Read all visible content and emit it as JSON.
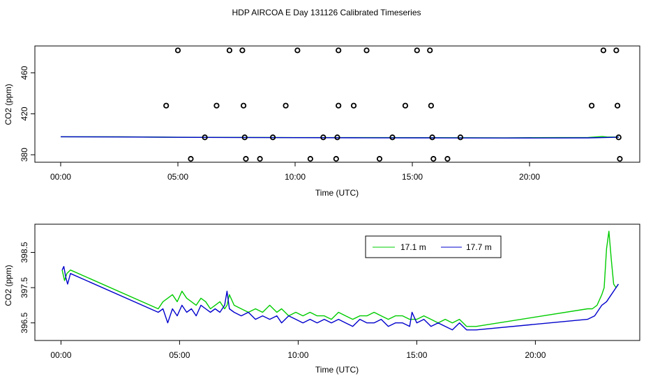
{
  "title": "HDP AIRCOA E  Day 131126  Calibrated Timeseries",
  "colors": {
    "series_17_1": "#00cc00",
    "series_17_7": "#0000cc",
    "points": "#000000"
  },
  "chart_data": [
    {
      "type": "scatter",
      "xlabel": "Time (UTC)",
      "ylabel": "CO2 (ppm)",
      "xlim": [
        -1.1,
        24.7
      ],
      "ylim": [
        372.7,
        486.3
      ],
      "xticks": [
        {
          "v": 0,
          "label": "00:00"
        },
        {
          "v": 5,
          "label": "05:00"
        },
        {
          "v": 10,
          "label": "10:00"
        },
        {
          "v": 15,
          "label": "15:00"
        },
        {
          "v": 20,
          "label": "20:00"
        }
      ],
      "yticks": [
        {
          "v": 380,
          "label": "380"
        },
        {
          "v": 420,
          "label": "420"
        },
        {
          "v": 460,
          "label": "460"
        }
      ],
      "grid": false,
      "points": [
        {
          "x": 5.0,
          "y": 482
        },
        {
          "x": 7.2,
          "y": 482
        },
        {
          "x": 7.75,
          "y": 482
        },
        {
          "x": 10.1,
          "y": 482
        },
        {
          "x": 11.85,
          "y": 482
        },
        {
          "x": 13.05,
          "y": 482
        },
        {
          "x": 15.2,
          "y": 482
        },
        {
          "x": 15.75,
          "y": 482
        },
        {
          "x": 23.15,
          "y": 482
        },
        {
          "x": 23.7,
          "y": 482
        },
        {
          "x": 4.5,
          "y": 428
        },
        {
          "x": 6.65,
          "y": 428
        },
        {
          "x": 7.8,
          "y": 428
        },
        {
          "x": 9.6,
          "y": 428
        },
        {
          "x": 11.85,
          "y": 428
        },
        {
          "x": 12.5,
          "y": 428
        },
        {
          "x": 14.7,
          "y": 428
        },
        {
          "x": 15.8,
          "y": 428
        },
        {
          "x": 22.65,
          "y": 428
        },
        {
          "x": 23.75,
          "y": 428
        },
        {
          "x": 6.15,
          "y": 397
        },
        {
          "x": 7.85,
          "y": 397
        },
        {
          "x": 9.05,
          "y": 397
        },
        {
          "x": 11.2,
          "y": 397
        },
        {
          "x": 11.8,
          "y": 397
        },
        {
          "x": 14.15,
          "y": 397
        },
        {
          "x": 15.85,
          "y": 397
        },
        {
          "x": 17.05,
          "y": 397
        },
        {
          "x": 23.8,
          "y": 397
        },
        {
          "x": 5.55,
          "y": 376
        },
        {
          "x": 7.9,
          "y": 376
        },
        {
          "x": 8.5,
          "y": 376
        },
        {
          "x": 10.65,
          "y": 376
        },
        {
          "x": 11.75,
          "y": 376
        },
        {
          "x": 13.6,
          "y": 376
        },
        {
          "x": 15.9,
          "y": 376
        },
        {
          "x": 16.5,
          "y": 376
        },
        {
          "x": 23.85,
          "y": 376
        }
      ],
      "series": [
        {
          "color": "#00cc00",
          "x": [
            0,
            2.5,
            4.5,
            7,
            10,
            13,
            16,
            19,
            22.5,
            23.1,
            23.3,
            23.8
          ],
          "y": [
            397.6,
            397.5,
            397.2,
            397.0,
            396.8,
            396.8,
            396.7,
            396.6,
            396.9,
            397.8,
            397.4,
            397.2
          ]
        },
        {
          "color": "#0000cc",
          "x": [
            0,
            2.5,
            4.5,
            7,
            10,
            13,
            16,
            19,
            22.5,
            23.3,
            23.8
          ],
          "y": [
            397.6,
            397.4,
            397.1,
            396.9,
            396.7,
            396.6,
            396.5,
            396.4,
            396.5,
            396.9,
            397.1
          ]
        }
      ]
    },
    {
      "type": "line",
      "xlabel": "Time (UTC)",
      "ylabel": "CO2 (ppm)",
      "xlim": [
        -1.1,
        24.4
      ],
      "ylim": [
        396.0,
        399.3
      ],
      "xticks": [
        {
          "v": 0,
          "label": "00:00"
        },
        {
          "v": 5,
          "label": "05:00"
        },
        {
          "v": 10,
          "label": "10:00"
        },
        {
          "v": 15,
          "label": "15:00"
        },
        {
          "v": 20,
          "label": "20:00"
        }
      ],
      "yticks": [
        {
          "v": 396.5,
          "label": "396.5"
        },
        {
          "v": 397.5,
          "label": "397.5"
        },
        {
          "v": 398.5,
          "label": "398.5"
        }
      ],
      "grid": false,
      "legend": "top-right",
      "series": [
        {
          "name": "17.1 m",
          "color": "#00cc00",
          "x": [
            0.05,
            0.15,
            0.25,
            0.4,
            4.1,
            4.3,
            4.5,
            4.7,
            4.9,
            5.1,
            5.3,
            5.5,
            5.7,
            5.9,
            6.1,
            6.3,
            6.5,
            6.7,
            6.9,
            7.0,
            7.1,
            7.3,
            7.6,
            7.9,
            8.2,
            8.5,
            8.8,
            9.1,
            9.3,
            9.6,
            9.9,
            10.2,
            10.5,
            10.8,
            11.1,
            11.4,
            11.7,
            12.0,
            12.3,
            12.6,
            12.9,
            13.2,
            13.5,
            13.8,
            14.1,
            14.4,
            14.7,
            15.0,
            15.3,
            15.6,
            15.9,
            16.2,
            16.5,
            16.8,
            17.1,
            17.5,
            22.2,
            22.4,
            22.6,
            22.8,
            22.9,
            23.0,
            23.1,
            23.2,
            23.3,
            23.4,
            23.5
          ],
          "y": [
            398.0,
            397.7,
            397.9,
            398.0,
            396.9,
            397.1,
            397.2,
            397.3,
            397.1,
            397.4,
            397.2,
            397.1,
            397.0,
            397.2,
            397.1,
            396.9,
            397.0,
            397.1,
            396.9,
            397.0,
            397.3,
            397.0,
            396.9,
            396.8,
            396.9,
            396.8,
            397.0,
            396.8,
            396.9,
            396.7,
            396.8,
            396.7,
            396.8,
            396.7,
            396.7,
            396.6,
            396.8,
            396.7,
            396.6,
            396.7,
            396.7,
            396.8,
            396.7,
            396.6,
            396.7,
            396.7,
            396.6,
            396.6,
            396.7,
            396.6,
            396.5,
            396.6,
            396.5,
            396.6,
            396.4,
            396.4,
            396.9,
            396.9,
            397.0,
            397.3,
            397.5,
            398.6,
            399.1,
            398.3,
            397.6,
            397.5,
            397.6
          ]
        },
        {
          "name": "17.7 m",
          "color": "#0000cc",
          "x": [
            0.05,
            0.12,
            0.2,
            0.28,
            0.4,
            4.1,
            4.3,
            4.5,
            4.7,
            4.9,
            5.1,
            5.3,
            5.5,
            5.7,
            5.9,
            6.1,
            6.3,
            6.5,
            6.7,
            6.9,
            7.0,
            7.1,
            7.3,
            7.6,
            7.9,
            8.2,
            8.5,
            8.8,
            9.1,
            9.3,
            9.6,
            9.9,
            10.2,
            10.5,
            10.8,
            11.1,
            11.4,
            11.7,
            12.0,
            12.3,
            12.6,
            12.9,
            13.2,
            13.5,
            13.8,
            14.1,
            14.4,
            14.7,
            14.8,
            15.0,
            15.3,
            15.6,
            15.9,
            16.2,
            16.5,
            16.8,
            17.1,
            17.5,
            22.2,
            22.5,
            22.8,
            23.0,
            23.2,
            23.4,
            23.5
          ],
          "y": [
            398.0,
            398.1,
            397.8,
            397.6,
            397.9,
            396.8,
            396.9,
            396.5,
            396.9,
            396.7,
            397.0,
            396.8,
            396.9,
            396.7,
            397.0,
            396.9,
            396.8,
            396.9,
            396.8,
            397.0,
            397.4,
            396.9,
            396.8,
            396.7,
            396.8,
            396.6,
            396.7,
            396.6,
            396.7,
            396.5,
            396.7,
            396.6,
            396.5,
            396.6,
            396.5,
            396.6,
            396.5,
            396.6,
            396.5,
            396.4,
            396.6,
            396.5,
            396.5,
            396.6,
            396.4,
            396.5,
            396.5,
            396.4,
            396.8,
            396.5,
            396.6,
            396.4,
            396.5,
            396.4,
            396.3,
            396.5,
            396.3,
            396.3,
            396.6,
            396.7,
            397.0,
            397.1,
            397.3,
            397.5,
            397.6
          ]
        }
      ]
    }
  ]
}
